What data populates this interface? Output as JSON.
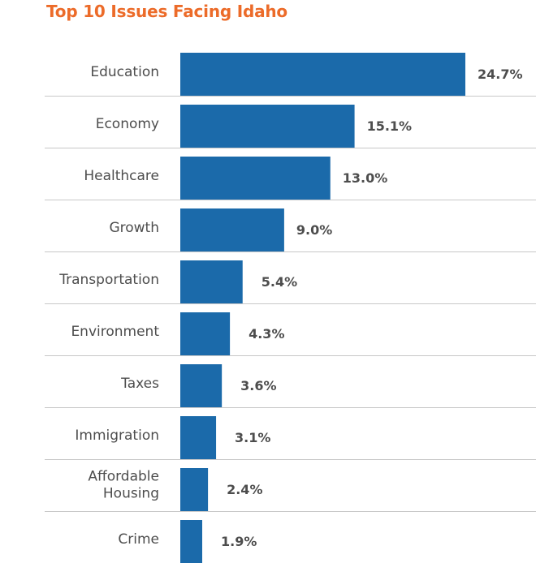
{
  "chart_data": {
    "type": "bar",
    "orientation": "horizontal",
    "title": "Top 10 Issues Facing Idaho",
    "categories": [
      "Education",
      "Economy",
      "Healthcare",
      "Growth",
      "Transportation",
      "Environment",
      "Taxes",
      "Immigration",
      "Affordable Housing",
      "Crime"
    ],
    "values": [
      24.7,
      15.1,
      13.0,
      9.0,
      5.4,
      4.3,
      3.6,
      3.1,
      2.4,
      1.9
    ],
    "value_labels": [
      "24.7%",
      "15.1%",
      "13.0%",
      "9.0%",
      "5.4%",
      "4.3%",
      "3.6%",
      "3.1%",
      "2.4%",
      "1.9%"
    ],
    "unit": "%",
    "bar_color": "#1b6aaa",
    "title_color": "#ec6b29",
    "grid": false,
    "xlim": [
      0,
      24.7
    ]
  }
}
